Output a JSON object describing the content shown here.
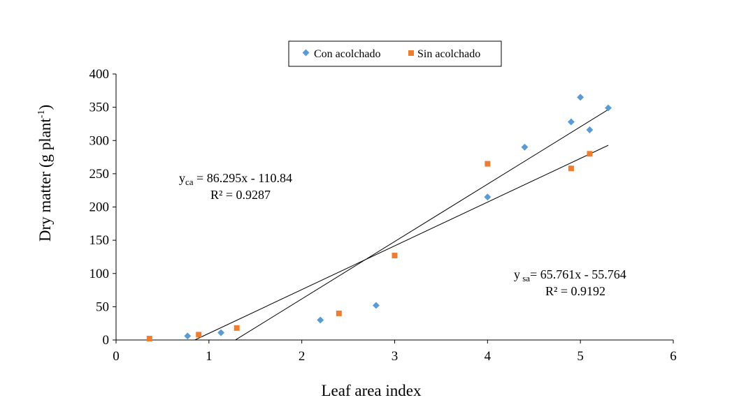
{
  "chart_data": {
    "type": "scatter",
    "xlabel": "Leaf area index",
    "ylabel": "Dry matter (g plant",
    "ylabel_sup": "-1",
    "ylabel_close": ")",
    "xlim": [
      0,
      6
    ],
    "ylim": [
      0,
      400
    ],
    "x_ticks": [
      "0",
      "1",
      "2",
      "3",
      "4",
      "5",
      "6"
    ],
    "y_ticks": [
      "0",
      "50",
      "100",
      "150",
      "200",
      "250",
      "300",
      "350",
      "400"
    ],
    "grid": false,
    "legend_position": "top-center",
    "series": [
      {
        "name": "Con acolchado",
        "marker": "diamond",
        "color": "#5B9BD5",
        "points": [
          {
            "x": 0.77,
            "y": 6
          },
          {
            "x": 1.13,
            "y": 11
          },
          {
            "x": 2.2,
            "y": 30
          },
          {
            "x": 2.8,
            "y": 52
          },
          {
            "x": 4.0,
            "y": 215
          },
          {
            "x": 4.4,
            "y": 290
          },
          {
            "x": 4.9,
            "y": 328
          },
          {
            "x": 5.0,
            "y": 365
          },
          {
            "x": 5.1,
            "y": 316
          },
          {
            "x": 5.3,
            "y": 349
          }
        ],
        "trendline": {
          "slope": 86.295,
          "intercept": -110.84,
          "x_range": [
            1.284,
            5.3
          ]
        }
      },
      {
        "name": "Sin acolchado",
        "marker": "square",
        "color": "#ED7D31",
        "points": [
          {
            "x": 0.36,
            "y": 2
          },
          {
            "x": 0.89,
            "y": 8
          },
          {
            "x": 1.3,
            "y": 18
          },
          {
            "x": 2.4,
            "y": 40
          },
          {
            "x": 3.0,
            "y": 127
          },
          {
            "x": 4.0,
            "y": 265
          },
          {
            "x": 4.9,
            "y": 258
          },
          {
            "x": 5.1,
            "y": 280
          }
        ],
        "trendline": {
          "slope": 65.761,
          "intercept": -55.764,
          "x_range": [
            0.848,
            5.3
          ]
        }
      }
    ],
    "annotations": {
      "eq_ca_y": "y",
      "eq_ca_sub": "ca",
      "eq_ca_rest": " = 86.295x - 110.84",
      "r2_ca": "R² = 0.9287",
      "eq_sa_y": "y",
      "eq_sa_sub": " sa",
      "eq_sa_rest": "= 65.761x - 55.764",
      "r2_sa": "R² = 0.9192"
    }
  }
}
